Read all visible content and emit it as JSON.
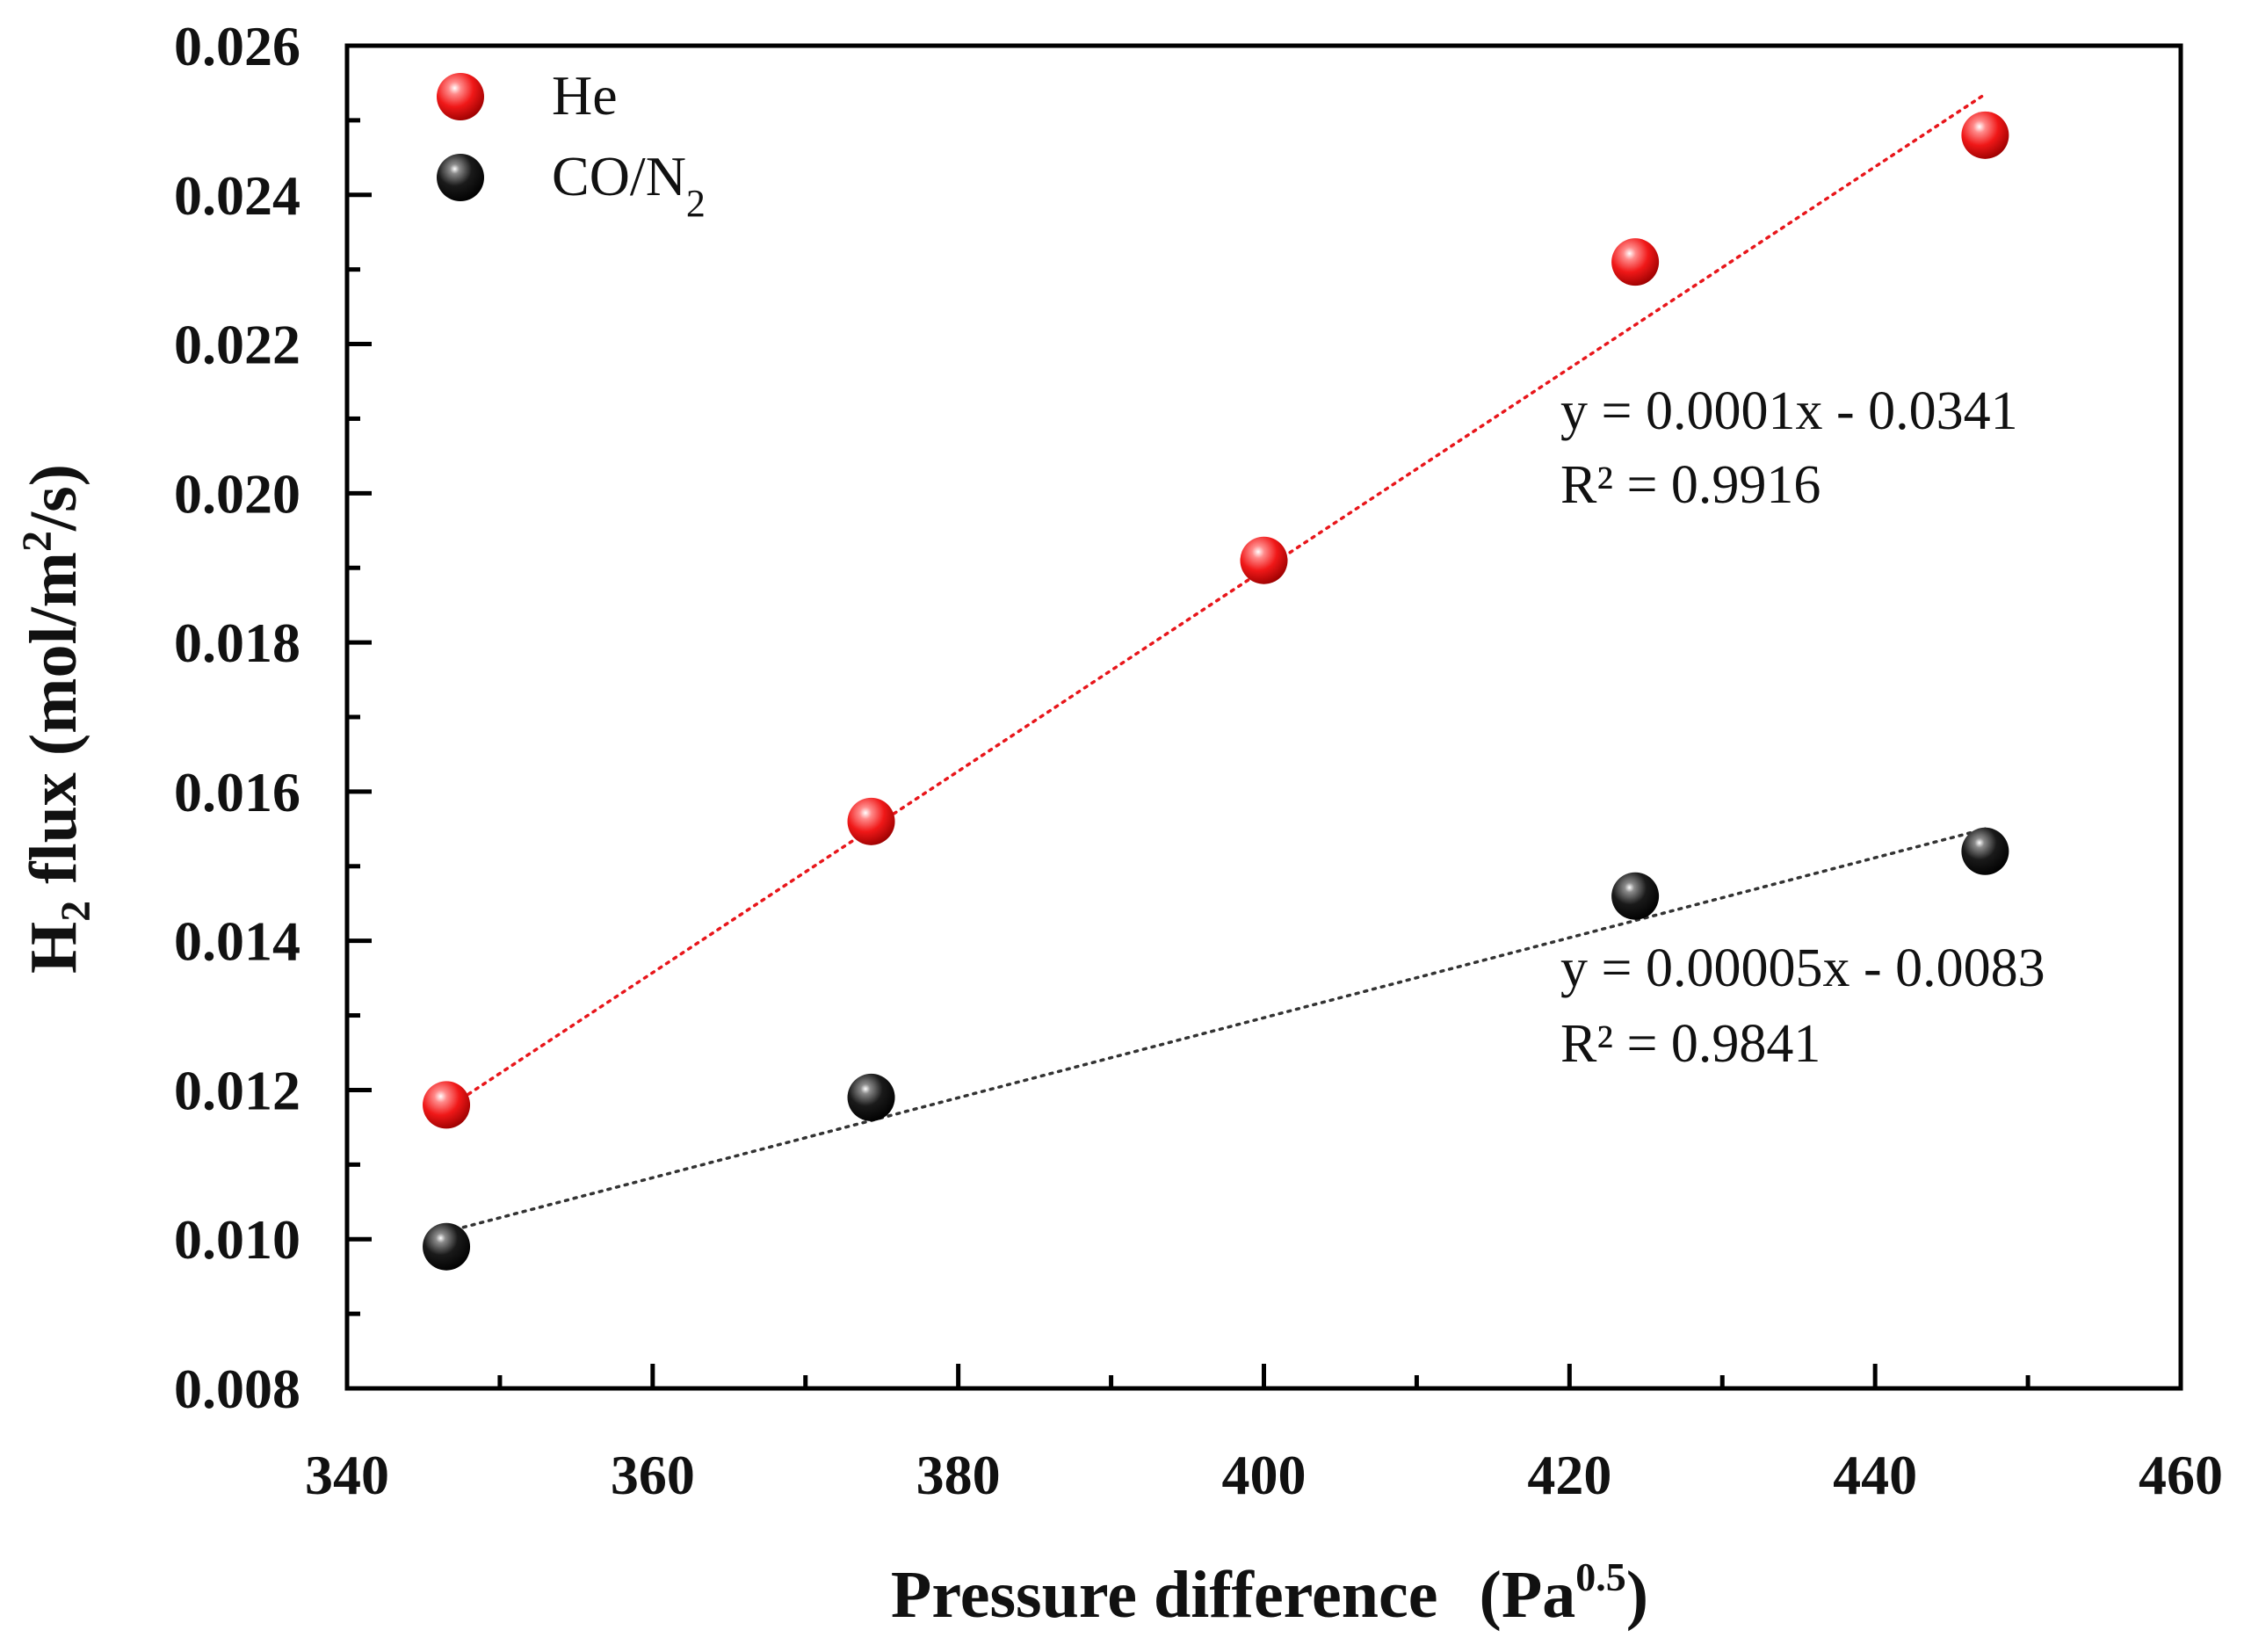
{
  "chart_data": {
    "type": "scatter",
    "xlabel": "Pressure difference (Pa0.5)",
    "xlabel_main": "Pressure difference",
    "xlabel_unit_base": "(Pa",
    "xlabel_unit_exp": "0.5",
    "xlabel_unit_close": ")",
    "ylabel": "H2 flux (mol/m2/s)",
    "ylabel_parts": {
      "h": "H",
      "sub": "2",
      "mid": " flux (mol/m",
      "sup": "2",
      "end": "/s)"
    },
    "xlim": [
      340,
      460
    ],
    "ylim": [
      0.008,
      0.026
    ],
    "x_ticks": [
      340,
      360,
      380,
      400,
      420,
      440,
      460
    ],
    "x_tick_labels": [
      "340",
      "360",
      "380",
      "400",
      "420",
      "440",
      "460"
    ],
    "y_ticks": [
      0.008,
      0.01,
      0.012,
      0.014,
      0.016,
      0.018,
      0.02,
      0.022,
      0.024,
      0.026
    ],
    "y_tick_labels": [
      "0.008",
      "0.010",
      "0.012",
      "0.014",
      "0.016",
      "0.018",
      "0.020",
      "0.022",
      "0.024",
      "0.026"
    ],
    "grid": false,
    "legend_position": "top-left",
    "series": [
      {
        "name": "He",
        "legend_label": "He",
        "color": "#e8161b",
        "x": [
          346.5,
          374.3,
          400.0,
          424.3,
          447.2
        ],
        "y": [
          0.0118,
          0.0156,
          0.0191,
          0.0231,
          0.0248
        ],
        "fit_line": {
          "x": [
            346.5,
            447.2
          ],
          "y": [
            0.01175,
            0.02535
          ]
        },
        "equation": "y = 0.0001x - 0.0341",
        "r2": "R² = 0.9916"
      },
      {
        "name": "CO/N2",
        "legend_label_base": "CO/N",
        "legend_label_sub": "2",
        "color": "#111111",
        "x": [
          346.5,
          374.3,
          424.3,
          447.2
        ],
        "y": [
          0.0099,
          0.0119,
          0.0146,
          0.0152
        ],
        "fit_line": {
          "x": [
            346.5,
            447.2
          ],
          "y": [
            0.0101,
            0.0155
          ]
        },
        "equation": "y = 0.00005x - 0.0083",
        "r2": "R² = 0.9841"
      }
    ]
  }
}
